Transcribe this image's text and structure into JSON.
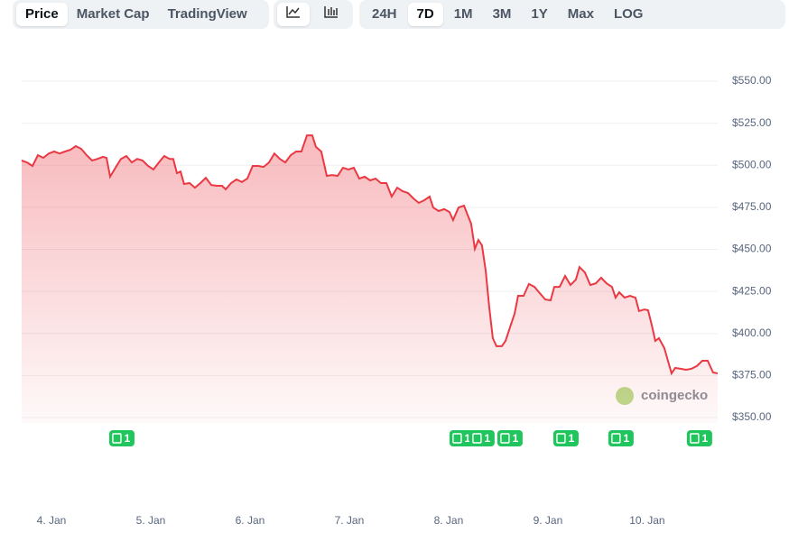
{
  "toolbar": {
    "views": [
      "Price",
      "Market Cap",
      "TradingView"
    ],
    "active_view": 0,
    "ranges": [
      "24H",
      "7D",
      "1M",
      "3M",
      "1Y",
      "Max",
      "LOG"
    ],
    "active_range": 1
  },
  "watermark": "coingecko",
  "chart_data": {
    "type": "area",
    "color": "#ea3943",
    "grid": true,
    "x": [
      3.7,
      3.755,
      3.809,
      3.864,
      3.918,
      3.973,
      4.027,
      4.082,
      4.136,
      4.191,
      4.245,
      4.3,
      4.355,
      4.409,
      4.464,
      4.518,
      4.555,
      4.591,
      4.645,
      4.7,
      4.755,
      4.809,
      4.864,
      4.918,
      4.973,
      5.027,
      5.082,
      5.136,
      5.191,
      5.227,
      5.264,
      5.3,
      5.336,
      5.391,
      5.445,
      5.5,
      5.555,
      5.609,
      5.664,
      5.718,
      5.755,
      5.809,
      5.864,
      5.918,
      5.973,
      6.027,
      6.082,
      6.136,
      6.191,
      6.245,
      6.3,
      6.355,
      6.409,
      6.464,
      6.518,
      6.573,
      6.627,
      6.664,
      6.718,
      6.773,
      6.827,
      6.882,
      6.936,
      6.991,
      7.045,
      7.1,
      7.155,
      7.209,
      7.264,
      7.318,
      7.373,
      7.427,
      7.482,
      7.536,
      7.591,
      7.645,
      7.7,
      7.755,
      7.809,
      7.845,
      7.9,
      7.955,
      8.009,
      8.045,
      8.1,
      8.155,
      8.191,
      8.227,
      8.264,
      8.3,
      8.336,
      8.373,
      8.409,
      8.445,
      8.482,
      8.536,
      8.573,
      8.627,
      8.664,
      8.7,
      8.755,
      8.809,
      8.864,
      8.918,
      8.973,
      9.027,
      9.064,
      9.118,
      9.173,
      9.227,
      9.282,
      9.318,
      9.373,
      9.427,
      9.482,
      9.536,
      9.591,
      9.645,
      9.682,
      9.718,
      9.773,
      9.827,
      9.882,
      9.918,
      9.973,
      10.009,
      10.045,
      10.082,
      10.118,
      10.173,
      10.209,
      10.245,
      10.282,
      10.336,
      10.391,
      10.445,
      10.5,
      10.555,
      10.609,
      10.664,
      10.709
    ],
    "values": [
      502.8,
      501.7,
      499.6,
      506,
      504.4,
      507,
      508.2,
      507,
      508.2,
      509.2,
      511.4,
      509.8,
      506,
      502.8,
      503.8,
      505,
      504.4,
      493.2,
      498.5,
      503.8,
      505.5,
      501.7,
      503.8,
      502.8,
      499.6,
      497.5,
      501.7,
      505.5,
      503.8,
      503.8,
      495.3,
      496.3,
      488.9,
      489.4,
      486.7,
      489.4,
      492.6,
      488.3,
      487.8,
      487.8,
      485.7,
      489.4,
      491.6,
      490,
      492.1,
      499.6,
      499.6,
      499,
      501.7,
      507,
      503.8,
      501.7,
      506,
      508.2,
      508.2,
      517.8,
      517.8,
      510.9,
      508.2,
      493.7,
      494.2,
      493.7,
      498.5,
      497.5,
      498.5,
      492.1,
      493.2,
      491,
      492.1,
      489.4,
      489.4,
      481.4,
      486.7,
      484.6,
      483.5,
      480.3,
      477.6,
      479.2,
      481.4,
      474.9,
      472.8,
      473.9,
      472.2,
      467.4,
      474.9,
      476,
      470.6,
      465.3,
      450.3,
      455.6,
      452.4,
      437.4,
      415.9,
      397.2,
      392.4,
      392.4,
      395.6,
      405.2,
      411.7,
      422.4,
      422.4,
      429.4,
      427.7,
      424,
      420.2,
      419.7,
      427.7,
      427.7,
      434.2,
      428.8,
      432,
      439.5,
      436.3,
      428.8,
      429.8,
      433.1,
      429.8,
      427.7,
      421.3,
      424.5,
      421.3,
      422.4,
      421.3,
      413.3,
      414.3,
      413.8,
      405.2,
      395.6,
      397.2,
      391.3,
      383.8,
      376.3,
      379.5,
      379,
      378.4,
      379,
      380.6,
      383.8,
      383.8,
      376.8,
      376.3
    ],
    "xlim": [
      3.7,
      10.71
    ],
    "xticks": [
      {
        "value": 4,
        "label": "4. Jan"
      },
      {
        "value": 5,
        "label": "5. Jan"
      },
      {
        "value": 6,
        "label": "6. Jan"
      },
      {
        "value": 7,
        "label": "7. Jan"
      },
      {
        "value": 8,
        "label": "8. Jan"
      },
      {
        "value": 9,
        "label": "9. Jan"
      },
      {
        "value": 10,
        "label": "10. Jan"
      }
    ],
    "ylim": [
      350,
      550
    ],
    "yticks": [
      {
        "value": 350,
        "label": "$350.00"
      },
      {
        "value": 375,
        "label": "$375.00"
      },
      {
        "value": 400,
        "label": "$400.00"
      },
      {
        "value": 425,
        "label": "$425.00"
      },
      {
        "value": 450,
        "label": "$450.00"
      },
      {
        "value": 475,
        "label": "$475.00"
      },
      {
        "value": 500,
        "label": "$500.00"
      },
      {
        "value": 525,
        "label": "$525.00"
      },
      {
        "value": 550,
        "label": "$550.00"
      }
    ],
    "news": {
      "x": [
        4.709,
        8.136,
        8.336,
        8.618,
        9.182,
        9.736,
        10.527
      ],
      "counts": [
        1,
        1,
        1,
        1,
        1,
        1,
        1
      ]
    }
  }
}
